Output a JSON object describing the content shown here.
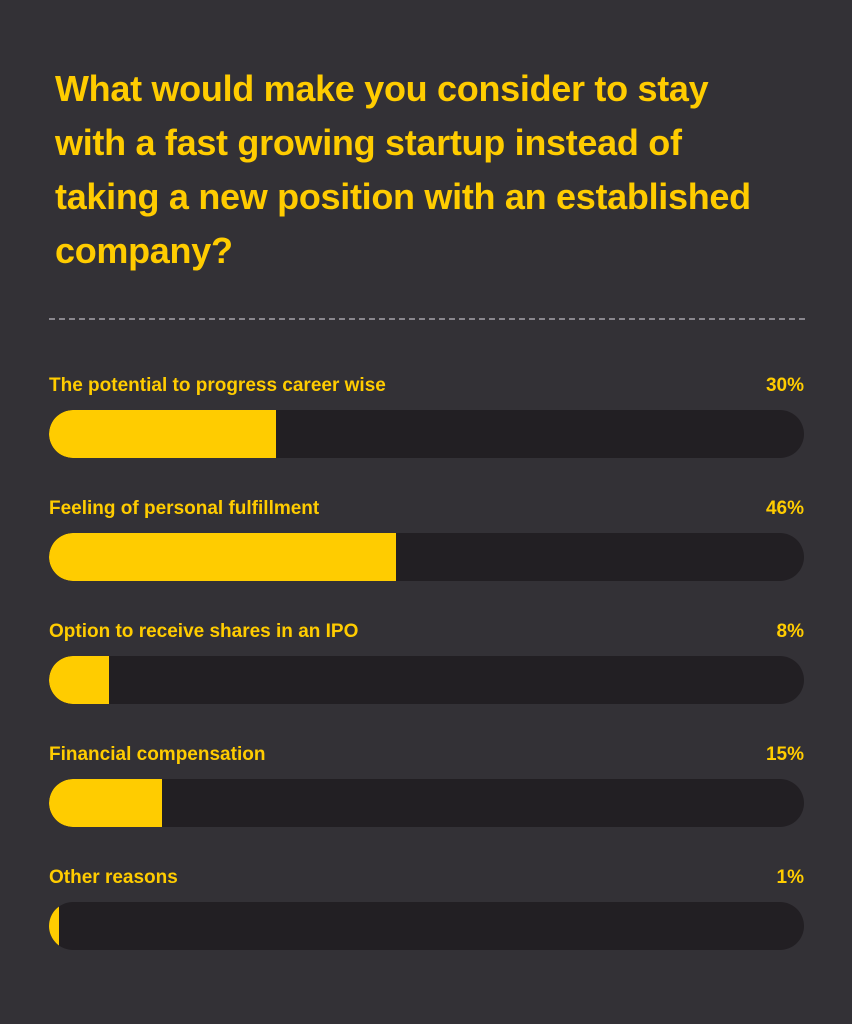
{
  "title": "What would make you consider to stay with a fast growing startup instead of taking a new position with an established company?",
  "colors": {
    "background": "#333136",
    "accent": "#FFCC00",
    "track": "#221f23",
    "divider": "#8a878e"
  },
  "chart_data": {
    "type": "bar",
    "orientation": "horizontal",
    "title": "What would make you consider to stay with a fast growing startup instead of taking a new position with an established company?",
    "categories": [
      "The potential to progress career wise",
      "Feeling of personal fulfillment",
      "Option to receive shares in an IPO",
      "Financial compensation",
      "Other reasons"
    ],
    "values": [
      30,
      46,
      8,
      15,
      1
    ],
    "value_labels": [
      "30%",
      "46%",
      "8%",
      "15%",
      "1%"
    ],
    "xlim": [
      0,
      100
    ],
    "grid": false,
    "legend": "none"
  }
}
